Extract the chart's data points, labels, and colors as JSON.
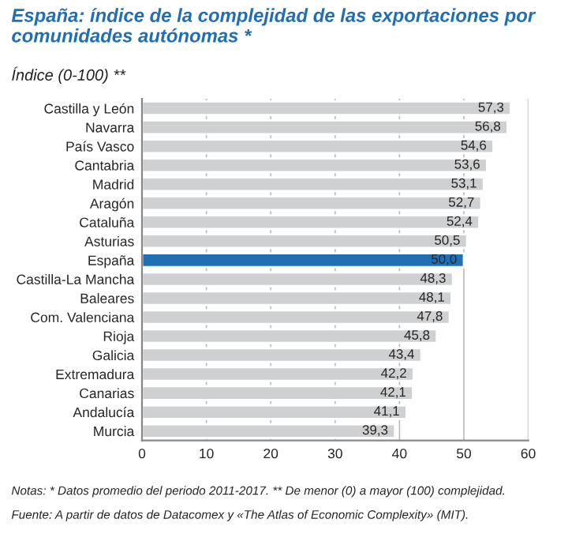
{
  "chart_data": {
    "type": "bar",
    "orientation": "horizontal",
    "title": "España: índice de la complejidad de las exportaciones por comunidades autónomas *",
    "subtitle": "Índice (0-100) **",
    "categories": [
      "Castilla y León",
      "Navarra",
      "País Vasco",
      "Cantabria",
      "Madrid",
      "Aragón",
      "Cataluña",
      "Asturias",
      "España",
      "Castilla-La Mancha",
      "Baleares",
      "Com. Valenciana",
      "Rioja",
      "Galicia",
      "Extremadura",
      "Canarias",
      "Andalucía",
      "Murcia"
    ],
    "values": [
      57.3,
      56.8,
      54.6,
      53.6,
      53.1,
      52.7,
      52.4,
      50.5,
      50.0,
      48.3,
      48.1,
      47.8,
      45.8,
      43.4,
      42.2,
      42.1,
      41.1,
      39.3
    ],
    "value_labels": [
      "57,3",
      "56,8",
      "54,6",
      "53,6",
      "53,1",
      "52,7",
      "52,4",
      "50,5",
      "50,0",
      "48,3",
      "48,1",
      "47,8",
      "45,8",
      "43,4",
      "42,2",
      "42,1",
      "41,1",
      "39,3"
    ],
    "colors": [
      "#cfd0d2",
      "#cfd0d2",
      "#cfd0d2",
      "#cfd0d2",
      "#cfd0d2",
      "#cfd0d2",
      "#cfd0d2",
      "#cfd0d2",
      "#1f6fb2",
      "#cfd0d2",
      "#cfd0d2",
      "#cfd0d2",
      "#cfd0d2",
      "#cfd0d2",
      "#cfd0d2",
      "#cfd0d2",
      "#cfd0d2",
      "#cfd0d2"
    ],
    "xlim": [
      0,
      60
    ],
    "xticks": [
      0,
      10,
      20,
      30,
      40,
      50,
      60
    ],
    "grid": "x",
    "annotations": [
      "Notas: * Datos promedio del periodo 2011-2017. ** De menor (0) a mayor (100) complejidad.",
      "Fuente: A partir de datos de Datacomex y «The Atlas of Economic Complexity» (MIT)."
    ]
  }
}
